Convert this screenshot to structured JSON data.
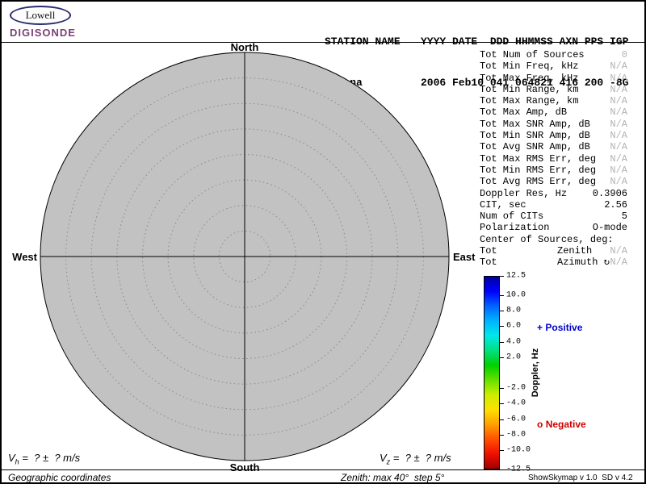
{
  "logo": {
    "oval_text": "Lowell",
    "brand": "DIGISONDE",
    "brand_color": "#7a4076"
  },
  "header": {
    "station_label": "STATION NAME",
    "station_value": "Gakona",
    "fields_label": "YYYY DATE  DDD HHMMSS AXN PPS IGP",
    "fields_value": "2006 Feb10 041 064821 416 200 -8G"
  },
  "params": [
    {
      "label": "Tot Num of Sources",
      "value": "0",
      "muted": true
    },
    {
      "label": "Tot Min Freq, kHz",
      "value": "N/A",
      "muted": true
    },
    {
      "label": "Tot Max Freq, kHz",
      "value": "N/A",
      "muted": true
    },
    {
      "label": "Tot Min Range, km",
      "value": "N/A",
      "muted": true
    },
    {
      "label": "Tot Max Range, km",
      "value": "N/A",
      "muted": true
    },
    {
      "label": "Tot Max Amp, dB",
      "value": "N/A",
      "muted": true
    },
    {
      "label": "Tot Max SNR Amp, dB",
      "value": "N/A",
      "muted": true
    },
    {
      "label": "Tot Min SNR Amp, dB",
      "value": "N/A",
      "muted": true
    },
    {
      "label": "Tot Avg SNR Amp, dB",
      "value": "N/A",
      "muted": true
    },
    {
      "label": "Tot Max RMS Err, deg",
      "value": "N/A",
      "muted": true
    },
    {
      "label": "Tot Min RMS Err, deg",
      "value": "N/A",
      "muted": true
    },
    {
      "label": "Tot Avg RMS Err, deg",
      "value": "N/A",
      "muted": true
    },
    {
      "label": "Doppler Res, Hz",
      "value": "0.3906",
      "muted": false
    },
    {
      "label": "CIT, sec",
      "value": "2.56",
      "muted": false
    },
    {
      "label": "Num of CITs",
      "value": "5",
      "muted": false
    },
    {
      "label": "Polarization",
      "value": "O-mode",
      "muted": false
    },
    {
      "label": "Center of Sources, deg:"
    },
    {
      "label": "Tot",
      "mid": "Zenith",
      "value": "N/A",
      "muted": true
    },
    {
      "label": "Tot",
      "mid": "Azimuth ↻",
      "value": "N/A",
      "muted": true
    }
  ],
  "plot": {
    "north": "North",
    "south": "South",
    "west": "West",
    "east": "East",
    "disk_color": "#c2c2c2"
  },
  "chart_data": {
    "type": "scatter",
    "projection": "polar-skymap",
    "compass_labels": [
      "North",
      "East",
      "South",
      "West"
    ],
    "zenith_max_deg": 40,
    "zenith_step_deg": 5,
    "points": [],
    "colorbar_label": "Doppler, Hz",
    "colorbar_range": [
      -12.5,
      12.5
    ]
  },
  "colorbar": {
    "title": "Doppler, Hz",
    "max": 12.5,
    "min": -12.5,
    "tick_labels": [
      "12.5",
      "10.0",
      "8.0",
      "6.0",
      "4.0",
      "2.0",
      "-2.0",
      "-4.0",
      "-6.0",
      "-8.0",
      "-10.0",
      "-12.5"
    ],
    "gradient_top_to_bottom": [
      "#0000a0",
      "#0000ff",
      "#0064ff",
      "#00b4ff",
      "#00e8e8",
      "#00e080",
      "#00d000",
      "#66e000",
      "#ccee00",
      "#ffe000",
      "#ffa000",
      "#ff5000",
      "#ee1000",
      "#a00000"
    ]
  },
  "legend": {
    "positive_marker": "+",
    "positive_label": "Positive",
    "positive_color": "#0000cc",
    "negative_marker": "o",
    "negative_label": "Negative",
    "negative_color": "#cc0000"
  },
  "footer": {
    "vh": {
      "sym": "V",
      "sub": "h",
      "rest": " =  ? ±  ? m/s"
    },
    "vz": {
      "sym": "V",
      "sub": "z",
      "rest": " =  ? ±  ? m/s"
    },
    "coords": "Geographic coordinates",
    "zenith_info": "Zenith: max 40°  step 5°",
    "version": "ShowSkymap v 1.0  SD v 4.2"
  }
}
